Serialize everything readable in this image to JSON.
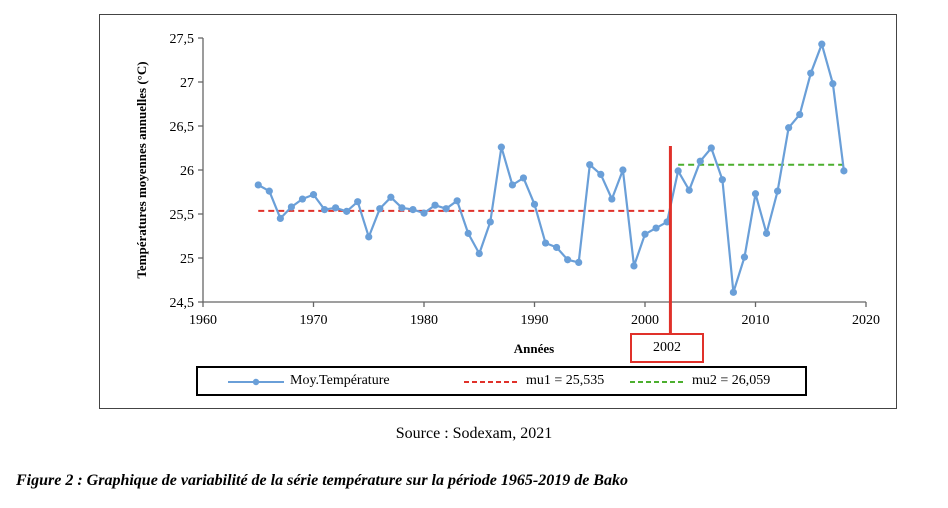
{
  "chart_data": {
    "type": "line",
    "title": "",
    "xlabel": "Années",
    "ylabel": "Températures moyennes annuelles (°C)",
    "xlim": [
      1960,
      2020
    ],
    "ylim": [
      24.5,
      27.5
    ],
    "x_ticks": [
      1960,
      1970,
      1980,
      1990,
      2000,
      2010,
      2020
    ],
    "y_ticks": [
      24.5,
      25,
      25.5,
      26,
      26.5,
      27,
      27.5
    ],
    "y_tick_labels": [
      "24,5",
      "25",
      "25,5",
      "26",
      "26,5",
      "27",
      "27,5"
    ],
    "grid": false,
    "legend_position": "bottom",
    "series": [
      {
        "name": "Moy.Température",
        "color": "#6a9fd8",
        "style": "line-markers",
        "x": [
          1965,
          1966,
          1967,
          1968,
          1969,
          1970,
          1971,
          1972,
          1973,
          1974,
          1975,
          1976,
          1977,
          1978,
          1979,
          1980,
          1981,
          1982,
          1983,
          1984,
          1985,
          1986,
          1987,
          1988,
          1989,
          1990,
          1991,
          1992,
          1993,
          1994,
          1995,
          1996,
          1997,
          1998,
          1999,
          2000,
          2001,
          2002,
          2003,
          2004,
          2005,
          2006,
          2007,
          2008,
          2009,
          2010,
          2011,
          2012,
          2013,
          2014,
          2015,
          2016,
          2017,
          2018
        ],
        "y": [
          25.83,
          25.76,
          25.45,
          25.58,
          25.67,
          25.72,
          25.55,
          25.57,
          25.53,
          25.64,
          25.24,
          25.56,
          25.69,
          25.57,
          25.55,
          25.51,
          25.6,
          25.56,
          25.65,
          25.28,
          25.05,
          25.41,
          26.26,
          25.83,
          25.91,
          25.61,
          25.17,
          25.12,
          24.98,
          24.95,
          26.06,
          25.95,
          25.67,
          26.0,
          24.91,
          25.27,
          25.34,
          25.41,
          25.99,
          25.77,
          26.1,
          26.25,
          25.89,
          24.61,
          25.01,
          25.73,
          25.28,
          25.76,
          26.48,
          26.63,
          27.1,
          27.43,
          26.98,
          25.99
        ]
      },
      {
        "name": "mu1 = 25,535",
        "color": "#e0312a",
        "style": "dashed",
        "x": [
          1965,
          2002
        ],
        "y": [
          25.535,
          25.535
        ]
      },
      {
        "name": "mu2 = 26,059",
        "color": "#4caf2e",
        "style": "dashed",
        "x": [
          2003,
          2018
        ],
        "y": [
          26.059,
          26.059
        ]
      }
    ],
    "annotations": [
      {
        "type": "vertical-line",
        "x": 2002.3,
        "label": "2002",
        "color": "#e0312a"
      }
    ]
  },
  "legend": {
    "items": [
      {
        "label": "Moy.Température",
        "color": "#6a9fd8"
      },
      {
        "label": "mu1 = 25,535",
        "color": "#e0312a"
      },
      {
        "label": "mu2 = 26,059",
        "color": "#4caf2e"
      }
    ]
  },
  "break_label": "2002",
  "source": "Source : Sodexam, 2021",
  "caption": "Figure 2 : Graphique de variabilité de la série température sur la période 1965-2019 de Bako"
}
